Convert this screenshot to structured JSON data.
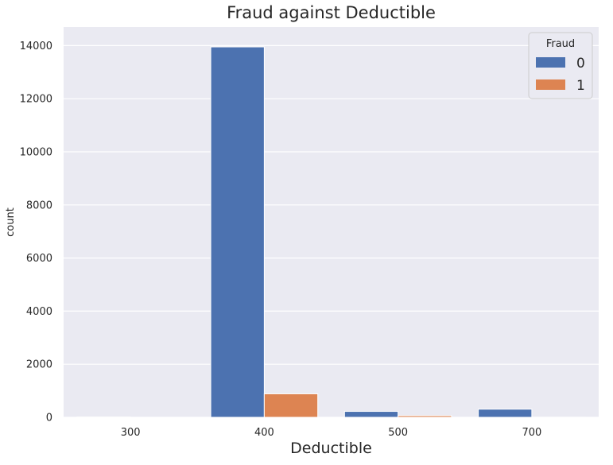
{
  "chart_data": {
    "type": "bar",
    "title": "Fraud against Deductible",
    "xlabel": "Deductible",
    "ylabel": "count",
    "categories": [
      "300",
      "400",
      "500",
      "700"
    ],
    "series": [
      {
        "name": "0",
        "values": [
          8,
          13951,
          223,
          306
        ],
        "color": "#4c72b0"
      },
      {
        "name": "1",
        "values": [
          0,
          885,
          63,
          2
        ],
        "color": "#dd8452"
      }
    ],
    "ylim": [
      0,
      14700
    ],
    "yticks": [
      0,
      2000,
      4000,
      6000,
      8000,
      10000,
      12000,
      14000
    ],
    "yticklabels": [
      "0",
      "2000",
      "4000",
      "6000",
      "8000",
      "10000",
      "12000",
      "14000"
    ],
    "grid": true,
    "background": "#eaeaf2",
    "legend": {
      "title": "Fraud",
      "placement": "top-right"
    }
  }
}
